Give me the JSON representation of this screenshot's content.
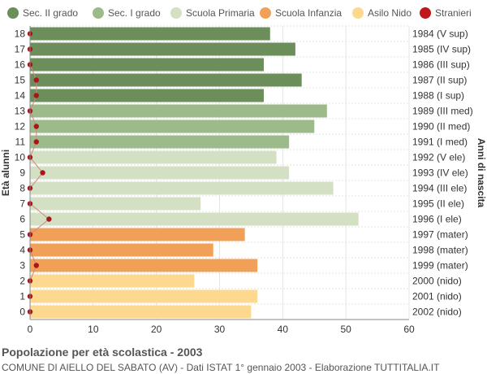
{
  "chart_data": {
    "type": "bar",
    "orientation": "horizontal",
    "y_left_label": "Età alunni",
    "y_right_label": "Anni di nascita",
    "xlim": [
      0,
      60
    ],
    "x_ticks": [
      0,
      10,
      20,
      30,
      40,
      50,
      60
    ],
    "grid": true,
    "legend_position": "top",
    "legend": [
      {
        "name": "Sec. II grado",
        "color": "#6b8e5a"
      },
      {
        "name": "Sec. I grado",
        "color": "#9dba8a"
      },
      {
        "name": "Scuola Primaria",
        "color": "#d4e0c4"
      },
      {
        "name": "Scuola Infanzia",
        "color": "#f0a057"
      },
      {
        "name": "Asilo Nido",
        "color": "#fdd98f"
      },
      {
        "name": "Stranieri",
        "color": "#c0161b"
      }
    ],
    "rows": [
      {
        "age": "18",
        "birth": "1984 (V sup)",
        "value": 38,
        "stranieri": 0,
        "group": 0
      },
      {
        "age": "17",
        "birth": "1985 (IV sup)",
        "value": 42,
        "stranieri": 0,
        "group": 0
      },
      {
        "age": "16",
        "birth": "1986 (III sup)",
        "value": 37,
        "stranieri": 0,
        "group": 0
      },
      {
        "age": "15",
        "birth": "1987 (II sup)",
        "value": 43,
        "stranieri": 1,
        "group": 0
      },
      {
        "age": "14",
        "birth": "1988 (I sup)",
        "value": 37,
        "stranieri": 1,
        "group": 0
      },
      {
        "age": "13",
        "birth": "1989 (III med)",
        "value": 47,
        "stranieri": 0,
        "group": 1
      },
      {
        "age": "12",
        "birth": "1990 (II med)",
        "value": 45,
        "stranieri": 1,
        "group": 1
      },
      {
        "age": "11",
        "birth": "1991 (I med)",
        "value": 41,
        "stranieri": 1,
        "group": 1
      },
      {
        "age": "10",
        "birth": "1992 (V ele)",
        "value": 39,
        "stranieri": 0,
        "group": 2
      },
      {
        "age": "9",
        "birth": "1993 (IV ele)",
        "value": 41,
        "stranieri": 2,
        "group": 2
      },
      {
        "age": "8",
        "birth": "1994 (III ele)",
        "value": 48,
        "stranieri": 0,
        "group": 2
      },
      {
        "age": "7",
        "birth": "1995 (II ele)",
        "value": 27,
        "stranieri": 0,
        "group": 2
      },
      {
        "age": "6",
        "birth": "1996 (I ele)",
        "value": 52,
        "stranieri": 3,
        "group": 2
      },
      {
        "age": "5",
        "birth": "1997 (mater)",
        "value": 34,
        "stranieri": 0,
        "group": 3
      },
      {
        "age": "4",
        "birth": "1998 (mater)",
        "value": 29,
        "stranieri": 0,
        "group": 3
      },
      {
        "age": "3",
        "birth": "1999 (mater)",
        "value": 36,
        "stranieri": 1,
        "group": 3
      },
      {
        "age": "2",
        "birth": "2000 (nido)",
        "value": 26,
        "stranieri": 0,
        "group": 4
      },
      {
        "age": "1",
        "birth": "2001 (nido)",
        "value": 36,
        "stranieri": 0,
        "group": 4
      },
      {
        "age": "0",
        "birth": "2002 (nido)",
        "value": 35,
        "stranieri": 0,
        "group": 4
      }
    ]
  },
  "footer": {
    "title": "Popolazione per età scolastica - 2003",
    "subtitle": "COMUNE DI AIELLO DEL SABATO (AV) - Dati ISTAT 1° gennaio 2003 - Elaborazione TUTTITALIA.IT"
  }
}
